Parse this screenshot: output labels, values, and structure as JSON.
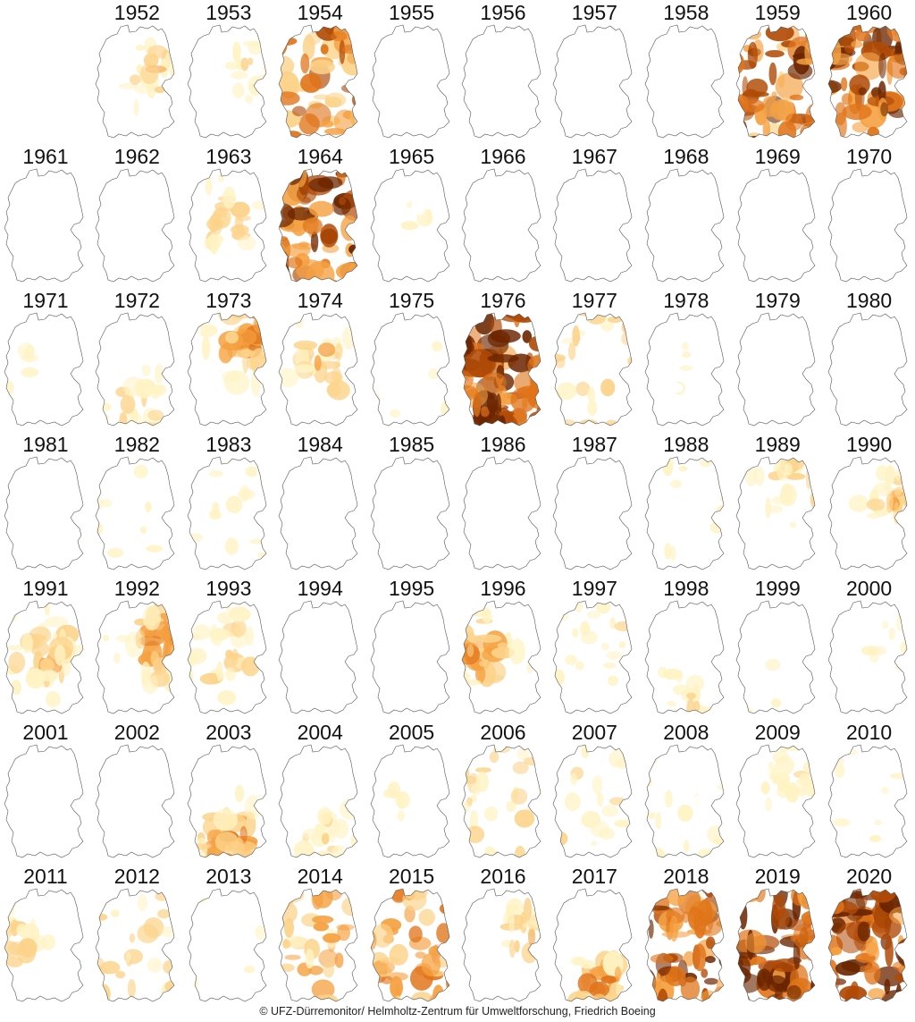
{
  "map_data": {
    "type": "small-multiples-choropleth",
    "region": "Germany",
    "color_scale": [
      "#ffffff",
      "#fff3c4",
      "#fcd38a",
      "#f5a142",
      "#e0741a",
      "#b04a06",
      "#6b2500"
    ],
    "outline_color": "#555555",
    "panels": [
      {
        "year": "1952",
        "severity": 0.35,
        "hotspot": "east"
      },
      {
        "year": "1953",
        "severity": 0.25,
        "hotspot": "east"
      },
      {
        "year": "1954",
        "severity": 0.6,
        "hotspot": "widespread"
      },
      {
        "year": "1955",
        "severity": 0.02,
        "hotspot": "none"
      },
      {
        "year": "1956",
        "severity": 0.0,
        "hotspot": "none"
      },
      {
        "year": "1957",
        "severity": 0.02,
        "hotspot": "north"
      },
      {
        "year": "1958",
        "severity": 0.0,
        "hotspot": "none"
      },
      {
        "year": "1959",
        "severity": 0.7,
        "hotspot": "widespread"
      },
      {
        "year": "1960",
        "severity": 0.8,
        "hotspot": "widespread"
      },
      {
        "year": "1961",
        "severity": 0.0,
        "hotspot": "none"
      },
      {
        "year": "1962",
        "severity": 0.05,
        "hotspot": "south"
      },
      {
        "year": "1963",
        "severity": 0.35,
        "hotspot": "central"
      },
      {
        "year": "1964",
        "severity": 0.85,
        "hotspot": "widespread"
      },
      {
        "year": "1965",
        "severity": 0.1,
        "hotspot": "central"
      },
      {
        "year": "1966",
        "severity": 0.0,
        "hotspot": "none"
      },
      {
        "year": "1967",
        "severity": 0.0,
        "hotspot": "none"
      },
      {
        "year": "1968",
        "severity": 0.0,
        "hotspot": "none"
      },
      {
        "year": "1969",
        "severity": 0.02,
        "hotspot": "none"
      },
      {
        "year": "1970",
        "severity": 0.0,
        "hotspot": "none"
      },
      {
        "year": "1971",
        "severity": 0.15,
        "hotspot": "west"
      },
      {
        "year": "1972",
        "severity": 0.35,
        "hotspot": "south"
      },
      {
        "year": "1973",
        "severity": 0.65,
        "hotspot": "northeast"
      },
      {
        "year": "1974",
        "severity": 0.45,
        "hotspot": "central"
      },
      {
        "year": "1975",
        "severity": 0.08,
        "hotspot": "none"
      },
      {
        "year": "1976",
        "severity": 0.95,
        "hotspot": "widespread"
      },
      {
        "year": "1977",
        "severity": 0.3,
        "hotspot": "widespread"
      },
      {
        "year": "1978",
        "severity": 0.12,
        "hotspot": "central"
      },
      {
        "year": "1979",
        "severity": 0.0,
        "hotspot": "none"
      },
      {
        "year": "1980",
        "severity": 0.0,
        "hotspot": "none"
      },
      {
        "year": "1981",
        "severity": 0.02,
        "hotspot": "south"
      },
      {
        "year": "1982",
        "severity": 0.1,
        "hotspot": "widespread"
      },
      {
        "year": "1983",
        "severity": 0.12,
        "hotspot": "widespread"
      },
      {
        "year": "1984",
        "severity": 0.03,
        "hotspot": "none"
      },
      {
        "year": "1985",
        "severity": 0.04,
        "hotspot": "south"
      },
      {
        "year": "1986",
        "severity": 0.0,
        "hotspot": "none"
      },
      {
        "year": "1987",
        "severity": 0.0,
        "hotspot": "none"
      },
      {
        "year": "1988",
        "severity": 0.1,
        "hotspot": "widespread"
      },
      {
        "year": "1989",
        "severity": 0.35,
        "hotspot": "northeast"
      },
      {
        "year": "1990",
        "severity": 0.4,
        "hotspot": "east"
      },
      {
        "year": "1991",
        "severity": 0.5,
        "hotspot": "central"
      },
      {
        "year": "1992",
        "severity": 0.6,
        "hotspot": "east"
      },
      {
        "year": "1993",
        "severity": 0.4,
        "hotspot": "central"
      },
      {
        "year": "1994",
        "severity": 0.03,
        "hotspot": "none"
      },
      {
        "year": "1995",
        "severity": 0.03,
        "hotspot": "none"
      },
      {
        "year": "1996",
        "severity": 0.6,
        "hotspot": "west"
      },
      {
        "year": "1997",
        "severity": 0.2,
        "hotspot": "widespread"
      },
      {
        "year": "1998",
        "severity": 0.25,
        "hotspot": "south"
      },
      {
        "year": "1999",
        "severity": 0.08,
        "hotspot": "none"
      },
      {
        "year": "2000",
        "severity": 0.15,
        "hotspot": "east"
      },
      {
        "year": "2001",
        "severity": 0.05,
        "hotspot": "east"
      },
      {
        "year": "2002",
        "severity": 0.02,
        "hotspot": "none"
      },
      {
        "year": "2003",
        "severity": 0.55,
        "hotspot": "south"
      },
      {
        "year": "2004",
        "severity": 0.3,
        "hotspot": "south"
      },
      {
        "year": "2005",
        "severity": 0.12,
        "hotspot": "west"
      },
      {
        "year": "2006",
        "severity": 0.3,
        "hotspot": "widespread"
      },
      {
        "year": "2007",
        "severity": 0.2,
        "hotspot": "widespread"
      },
      {
        "year": "2008",
        "severity": 0.15,
        "hotspot": "widespread"
      },
      {
        "year": "2009",
        "severity": 0.3,
        "hotspot": "northeast"
      },
      {
        "year": "2010",
        "severity": 0.12,
        "hotspot": "widespread"
      },
      {
        "year": "2011",
        "severity": 0.35,
        "hotspot": "west"
      },
      {
        "year": "2012",
        "severity": 0.3,
        "hotspot": "widespread"
      },
      {
        "year": "2013",
        "severity": 0.08,
        "hotspot": "none"
      },
      {
        "year": "2014",
        "severity": 0.4,
        "hotspot": "widespread"
      },
      {
        "year": "2015",
        "severity": 0.5,
        "hotspot": "widespread"
      },
      {
        "year": "2016",
        "severity": 0.4,
        "hotspot": "east"
      },
      {
        "year": "2017",
        "severity": 0.55,
        "hotspot": "south"
      },
      {
        "year": "2018",
        "severity": 0.75,
        "hotspot": "widespread"
      },
      {
        "year": "2019",
        "severity": 0.92,
        "hotspot": "widespread"
      },
      {
        "year": "2020",
        "severity": 0.85,
        "hotspot": "widespread"
      }
    ]
  },
  "credit": "© UFZ-Dürremonitor/ Helmholtz-Zentrum für Umweltforschung, Friedrich Boeing"
}
